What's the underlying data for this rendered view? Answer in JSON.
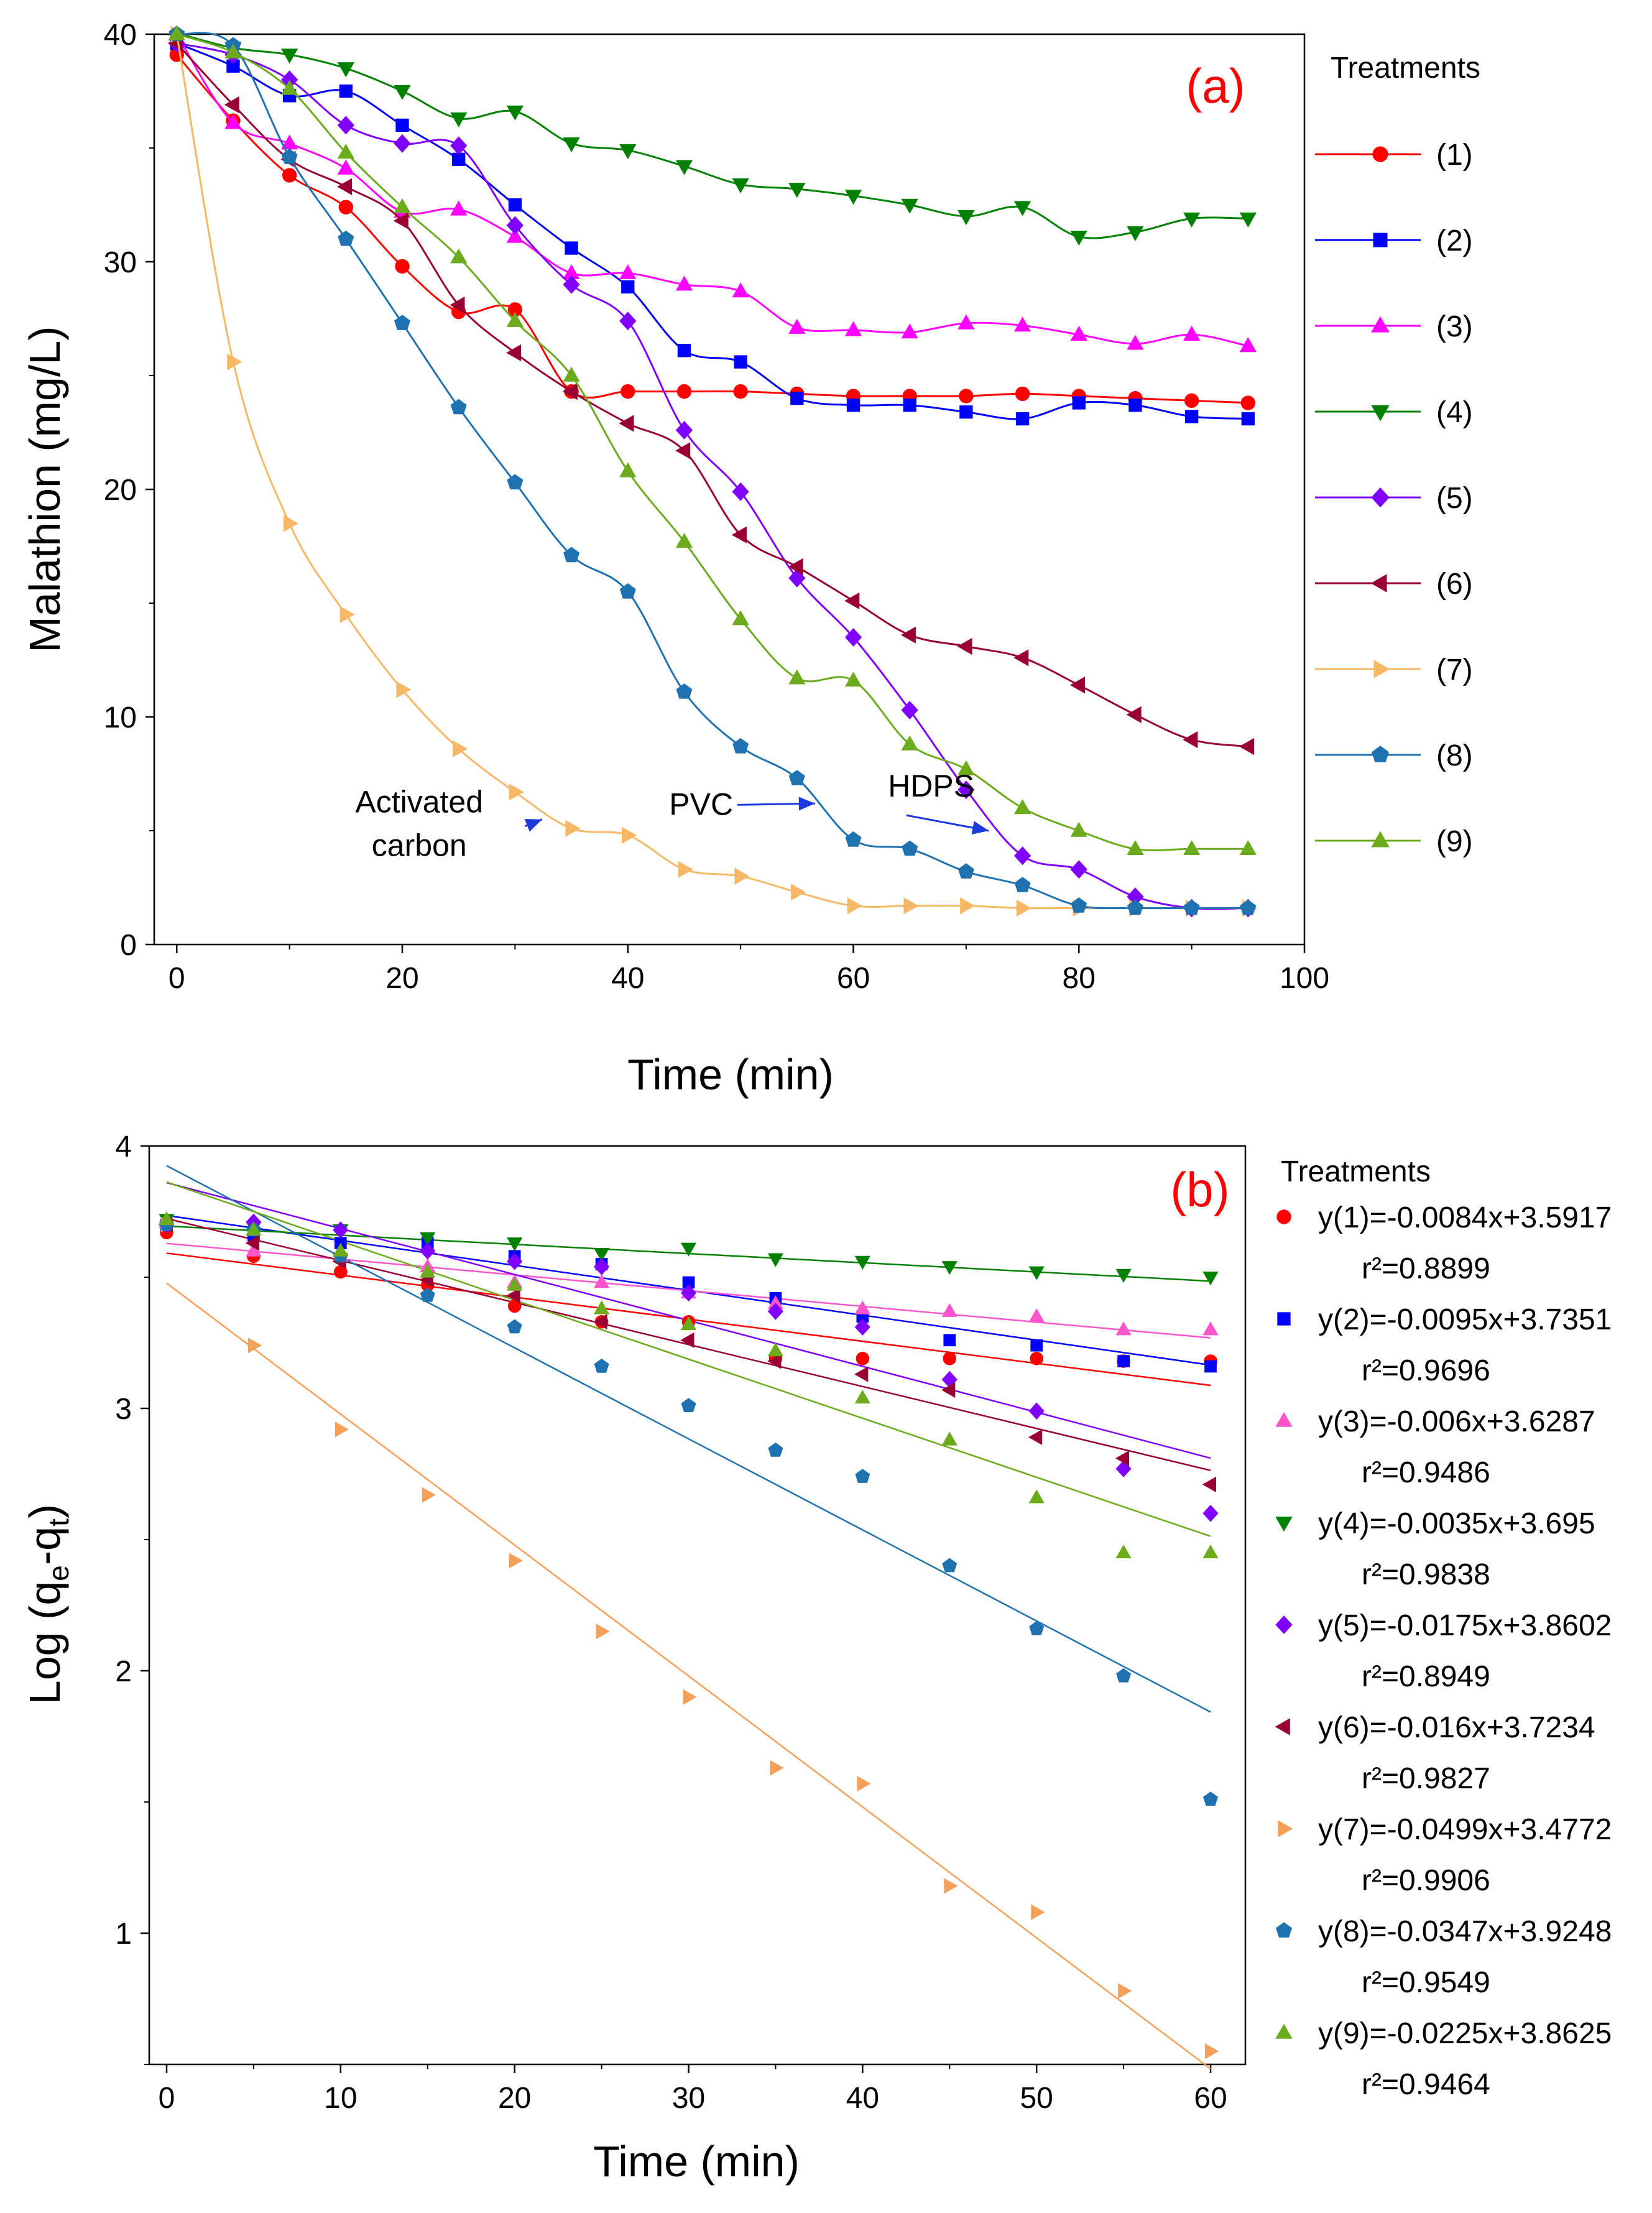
{
  "chart_data": [
    {
      "panel": "a",
      "panel_label": "(a)",
      "type": "line",
      "xlabel": "Time (min)",
      "ylabel": "Malathion (mg/L)",
      "xlim": [
        -2,
        100
      ],
      "ylim": [
        0,
        40
      ],
      "xticks": [
        "0",
        "20",
        "40",
        "60",
        "80",
        "100"
      ],
      "yticks": [
        "0",
        "10",
        "20",
        "30",
        "40"
      ],
      "legend_title": "Treatments",
      "x": [
        0,
        5,
        10,
        15,
        20,
        25,
        30,
        35,
        40,
        45,
        50,
        55,
        60,
        65,
        70,
        75,
        80,
        85,
        90,
        95
      ],
      "series": [
        {
          "name": "(1)",
          "color": "#ff0000",
          "marker": "circle",
          "values": [
            39.1,
            36.2,
            33.8,
            32.4,
            29.8,
            27.8,
            27.9,
            24.3,
            24.3,
            24.3,
            24.3,
            24.2,
            24.1,
            24.1,
            24.1,
            24.2,
            24.1,
            24.0,
            23.9,
            23.8
          ]
        },
        {
          "name": "(2)",
          "color": "#0000ff",
          "marker": "square",
          "values": [
            39.6,
            38.6,
            37.3,
            37.5,
            36.0,
            34.5,
            32.5,
            30.6,
            28.9,
            26.1,
            25.6,
            24.0,
            23.7,
            23.7,
            23.4,
            23.1,
            23.8,
            23.7,
            23.2,
            23.1
          ]
        },
        {
          "name": "(3)",
          "color": "#ff00ff",
          "marker": "triangle-up",
          "values": [
            40.0,
            36.1,
            35.2,
            34.1,
            32.2,
            32.3,
            31.1,
            29.5,
            29.5,
            29.0,
            28.7,
            27.1,
            27.0,
            26.9,
            27.3,
            27.2,
            26.8,
            26.4,
            26.8,
            26.3
          ]
        },
        {
          "name": "(4)",
          "color": "#008000",
          "marker": "triangle-down",
          "values": [
            40.3,
            39.4,
            39.1,
            38.5,
            37.5,
            36.3,
            36.6,
            35.2,
            34.9,
            34.2,
            33.4,
            33.2,
            32.9,
            32.5,
            32.0,
            32.4,
            31.1,
            31.3,
            31.9,
            31.9
          ]
        },
        {
          "name": "(5)",
          "color": "#8000ff",
          "marker": "diamond",
          "values": [
            39.6,
            39.1,
            38.0,
            36.0,
            35.2,
            35.1,
            31.6,
            29.0,
            27.4,
            22.6,
            19.9,
            16.1,
            13.5,
            10.3,
            6.8,
            3.9,
            3.3,
            2.1,
            1.6,
            1.6
          ]
        },
        {
          "name": "(6)",
          "color": "#990033",
          "marker": "triangle-left",
          "values": [
            39.6,
            36.9,
            34.5,
            33.3,
            31.8,
            28.1,
            26.0,
            24.3,
            22.9,
            21.7,
            18.0,
            16.6,
            15.1,
            13.6,
            13.1,
            12.6,
            11.4,
            10.1,
            9.0,
            8.7
          ]
        },
        {
          "name": "(7)",
          "color": "#f5b867",
          "marker": "triangle-right",
          "values": [
            40.0,
            25.6,
            18.5,
            14.5,
            11.2,
            8.6,
            6.7,
            5.1,
            4.8,
            3.3,
            3.0,
            2.3,
            1.7,
            1.7,
            1.7,
            1.6,
            1.6,
            1.6,
            1.6,
            1.6
          ]
        },
        {
          "name": "(8)",
          "color": "#1f72b0",
          "marker": "pentagon",
          "values": [
            40.0,
            39.5,
            34.6,
            31.0,
            27.3,
            23.6,
            20.3,
            17.1,
            15.5,
            11.1,
            8.7,
            7.3,
            4.6,
            4.2,
            3.2,
            2.6,
            1.7,
            1.6,
            1.6,
            1.6
          ]
        },
        {
          "name": "(9)",
          "color": "#6bab1c",
          "marker": "triangle-up",
          "values": [
            40.0,
            39.2,
            37.6,
            34.8,
            32.4,
            30.2,
            27.4,
            25.0,
            20.8,
            17.7,
            14.3,
            11.7,
            11.6,
            8.8,
            7.7,
            6.0,
            5.0,
            4.2,
            4.2,
            4.2
          ]
        }
      ],
      "annotations": [
        {
          "lines": [
            "Activated",
            "carbon"
          ],
          "x": 21.5,
          "y": 5.8,
          "arrow_to": [
            32.4,
            5.5
          ]
        },
        {
          "lines": [
            "PVC"
          ],
          "x": 46.5,
          "y": 5.7,
          "arrow_to": [
            56.6,
            6.2
          ]
        },
        {
          "lines": [
            "HDPS"
          ],
          "x": 66.9,
          "y": 6.5,
          "arrow_to": [
            72.0,
            5.0
          ]
        }
      ]
    },
    {
      "panel": "b",
      "panel_label": "(b)",
      "type": "scatter",
      "xlabel": "Time (min)",
      "ylabel_main": "Log (q",
      "ylabel_sub1": "e",
      "ylabel_mid": "-q",
      "ylabel_sub2": "t",
      "ylabel_end": ")",
      "xlim": [
        -1,
        62
      ],
      "ylim": [
        0.5,
        4
      ],
      "xticks": [
        "0",
        "10",
        "20",
        "30",
        "40",
        "50",
        "60"
      ],
      "yticks": [
        "1",
        "2",
        "3",
        "4"
      ],
      "legend_title": "Treatments",
      "x": [
        0,
        5,
        10,
        15,
        20,
        25,
        30,
        35,
        40,
        45,
        50,
        55,
        60
      ],
      "series": [
        {
          "name": "(1)",
          "color": "#ff0000",
          "marker": "circle",
          "equation": "y(1)=-0.0084x+3.5917",
          "r2": "r²=0.8899",
          "slope": -0.0084,
          "intercept": 3.5917,
          "values": [
            3.67,
            3.58,
            3.52,
            3.47,
            3.39,
            3.33,
            3.33,
            3.19,
            3.19,
            3.19,
            3.19,
            3.18,
            3.18
          ]
        },
        {
          "name": "(2)",
          "color": "#0000ff",
          "marker": "square",
          "equation": "y(2)=-0.0095x+3.7351",
          "r2": "r²=0.9696",
          "slope": -0.0095,
          "intercept": 3.7351,
          "values": [
            3.7,
            3.66,
            3.63,
            3.63,
            3.58,
            3.55,
            3.48,
            3.42,
            3.35,
            3.26,
            3.24,
            3.18,
            3.16
          ]
        },
        {
          "name": "(3)",
          "color": "#ff55cc",
          "marker": "triangle-up",
          "equation": "y(3)=-0.006x+3.6287",
          "r2": "r²=0.9486",
          "slope": -0.006,
          "intercept": 3.6287,
          "values": [
            3.71,
            3.6,
            3.58,
            3.54,
            3.48,
            3.48,
            3.44,
            3.4,
            3.38,
            3.37,
            3.35,
            3.3,
            3.3
          ]
        },
        {
          "name": "(4)",
          "color": "#008000",
          "marker": "triangle-down",
          "equation": "y(4)=-0.0035x+3.695",
          "r2": "r²=0.9838",
          "slope": -0.0035,
          "intercept": 3.695,
          "values": [
            3.72,
            3.69,
            3.68,
            3.65,
            3.63,
            3.59,
            3.61,
            3.57,
            3.56,
            3.54,
            3.52,
            3.51,
            3.5
          ]
        },
        {
          "name": "(5)",
          "color": "#8000ff",
          "marker": "diamond",
          "equation": "y(5)=-0.0175x+3.8602",
          "r2": "r²=0.8949",
          "slope": -0.0175,
          "intercept": 3.8602,
          "values": [
            3.7,
            3.71,
            3.68,
            3.6,
            3.56,
            3.54,
            3.44,
            3.37,
            3.31,
            3.11,
            2.99,
            2.77,
            2.6
          ]
        },
        {
          "name": "(6)",
          "color": "#990033",
          "marker": "triangle-left",
          "equation": "y(6)=-0.016x+3.7234",
          "r2": "r²=0.9827",
          "slope": -0.016,
          "intercept": 3.7234,
          "values": [
            3.7,
            3.63,
            3.56,
            3.49,
            3.43,
            3.33,
            3.26,
            3.18,
            3.13,
            3.07,
            2.89,
            2.81,
            2.71
          ]
        },
        {
          "name": "(7)",
          "color": "#f5a05a",
          "marker": "triangle-right",
          "equation": "y(7)=-0.0499x+3.4772",
          "r2": "r²=0.9906",
          "slope": -0.0499,
          "intercept": 3.4772,
          "values": [
            3.7,
            3.24,
            2.92,
            2.67,
            2.42,
            2.15,
            1.9,
            1.63,
            1.57,
            1.18,
            1.08,
            0.78,
            0.55
          ]
        },
        {
          "name": "(8)",
          "color": "#1f72b0",
          "marker": "pentagon",
          "equation": "y(8)=-0.0347x+3.9248",
          "r2": "r²=0.9549",
          "slope": -0.0347,
          "intercept": 3.9248,
          "values": [
            3.7,
            3.68,
            3.58,
            3.43,
            3.31,
            3.16,
            3.01,
            2.84,
            2.74,
            2.4,
            2.16,
            1.98,
            1.51
          ]
        },
        {
          "name": "(9)",
          "color": "#6bab1c",
          "marker": "triangle-up",
          "equation": "y(9)=-0.0225x+3.8625",
          "r2": "r²=0.9464",
          "slope": -0.0225,
          "intercept": 3.8625,
          "values": [
            3.72,
            3.68,
            3.6,
            3.52,
            3.47,
            3.38,
            3.32,
            3.22,
            3.04,
            2.88,
            2.66,
            2.45,
            2.45
          ]
        }
      ]
    }
  ]
}
